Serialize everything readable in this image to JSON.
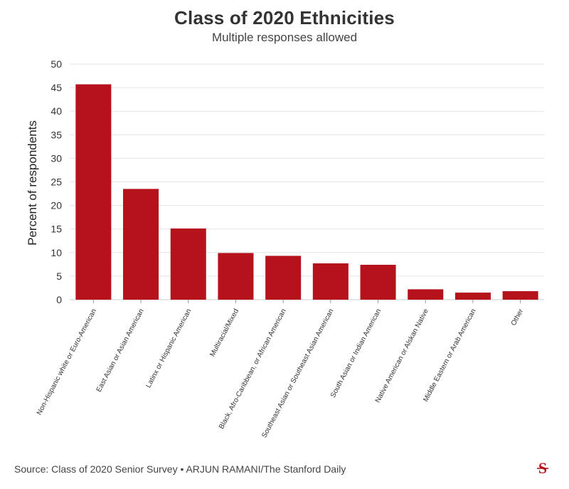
{
  "chart_data": {
    "type": "bar",
    "title": "Class of 2020 Ethnicities",
    "subtitle": "Multiple responses allowed",
    "ylabel": "Percent of respondents",
    "xlabel": "",
    "ylim": [
      0,
      50
    ],
    "yticks": [
      0,
      5,
      10,
      15,
      20,
      25,
      30,
      35,
      40,
      45,
      50
    ],
    "grid": true,
    "bar_color": "#b5121b",
    "categories": [
      "Non-Hispanic white or Euro-American",
      "East Asian or Asian American",
      "Latinx or Hispanic American",
      "Multiracial/Mixed",
      "Black, Afro-Caribbean, or African American",
      "Southeast Asian or Southeast Asian American",
      "South Asian or Indian American",
      "Native American or Alskan Native",
      "Middle Eastern or Arab American",
      "Other"
    ],
    "values": [
      45.7,
      23.5,
      15.1,
      9.9,
      9.3,
      7.7,
      7.4,
      2.2,
      1.5,
      1.8
    ]
  },
  "footer": {
    "source": "Source: Class of 2020 Senior Survey • ARJUN RAMANI/The Stanford Daily",
    "logo_icon": "stanford-daily-s-icon",
    "logo_color": "#b5121b"
  }
}
